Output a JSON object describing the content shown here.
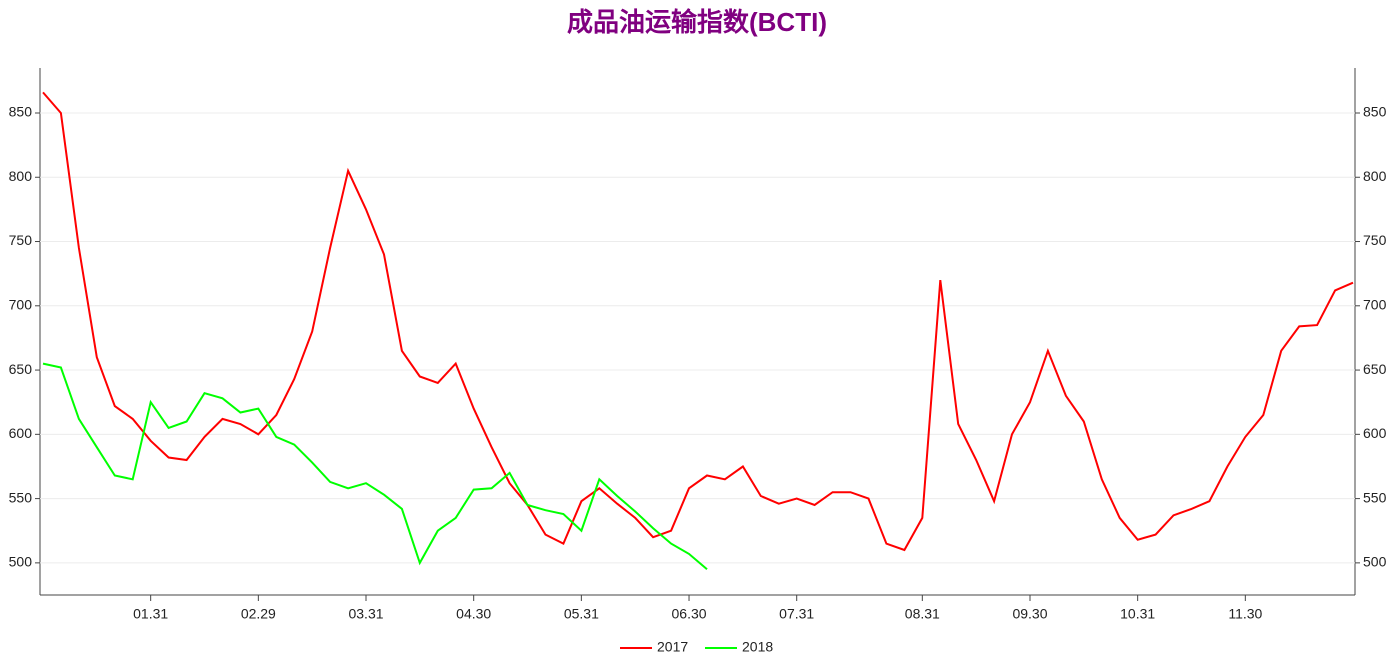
{
  "chart_data": {
    "type": "line",
    "title": "成品油运输指数(BCTI)",
    "categories": [
      null,
      null,
      null,
      null,
      null,
      null,
      "01.31",
      null,
      null,
      null,
      null,
      null,
      "02.29",
      null,
      null,
      null,
      null,
      null,
      "03.31",
      null,
      null,
      null,
      null,
      null,
      "04.30",
      null,
      null,
      null,
      null,
      null,
      "05.31",
      null,
      null,
      null,
      null,
      null,
      "06.30",
      null,
      null,
      null,
      null,
      null,
      "07.31",
      null,
      null,
      null,
      null,
      null,
      null,
      "08.31",
      null,
      null,
      null,
      null,
      null,
      "09.30",
      null,
      null,
      null,
      null,
      null,
      "10.31",
      null,
      null,
      null,
      null,
      null,
      "11.30",
      null,
      null,
      null,
      null,
      null,
      null
    ],
    "series": [
      {
        "name": "2017",
        "color": "#ff0000",
        "values": [
          866,
          850,
          745,
          660,
          622,
          612,
          595,
          582,
          580,
          598,
          612,
          608,
          600,
          615,
          643,
          680,
          745,
          805,
          775,
          740,
          665,
          645,
          640,
          655,
          620,
          590,
          562,
          545,
          522,
          515,
          548,
          558,
          546,
          535,
          520,
          525,
          558,
          568,
          565,
          575,
          552,
          546,
          550,
          545,
          555,
          555,
          550,
          515,
          510,
          535,
          720,
          608,
          580,
          548,
          600,
          625,
          665,
          630,
          610,
          565,
          535,
          518,
          522,
          537,
          542,
          548,
          575,
          598,
          615,
          665,
          684,
          685,
          712,
          718
        ]
      },
      {
        "name": "2018",
        "color": "#00ff00",
        "values": [
          655,
          652,
          612,
          590,
          568,
          565,
          625,
          605,
          610,
          632,
          628,
          617,
          620,
          598,
          592,
          578,
          563,
          558,
          562,
          553,
          542,
          500,
          525,
          535,
          557,
          558,
          570,
          545,
          541,
          538,
          525,
          565,
          552,
          540,
          527,
          515,
          507,
          495,
          null,
          null,
          null,
          null,
          null,
          null,
          null,
          null,
          null,
          null,
          null,
          null,
          null,
          null,
          null,
          null,
          null,
          null,
          null,
          null,
          null,
          null,
          null,
          null,
          null,
          null,
          null,
          null,
          null,
          null,
          null,
          null,
          null,
          null,
          null,
          null
        ]
      }
    ],
    "ylim": [
      475,
      885
    ],
    "yticks": [
      500,
      550,
      600,
      650,
      700,
      750,
      800,
      850
    ],
    "grid": true,
    "legend": "bottom"
  }
}
